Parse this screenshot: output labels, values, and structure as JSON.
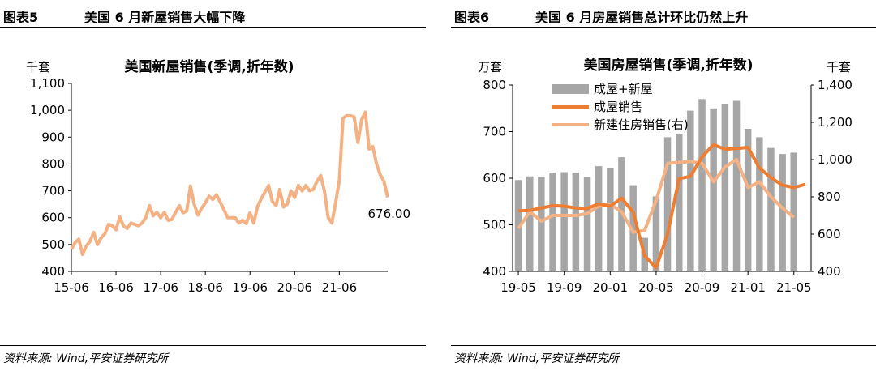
{
  "left": {
    "figure_number": "图表5",
    "figure_title": "美国 6 月新屋销售大幅下降",
    "source": "资料来源: Wind,平安证券研究所"
  },
  "right": {
    "figure_number": "图表6",
    "figure_title": "美国 6 月房屋销售总计环比仍然上升",
    "source": "资料来源: Wind,平安证券研究所"
  },
  "chart_data": [
    {
      "type": "line",
      "title": "美国新屋销售(季调,折年数)",
      "ylabel": "千套",
      "ylim": [
        400,
        1100
      ],
      "yticks": [
        400,
        500,
        600,
        700,
        800,
        900,
        1000,
        1100
      ],
      "ytick_labels": [
        "400",
        "500",
        "600",
        "700",
        "800",
        "900",
        "1,000",
        "1,100"
      ],
      "xtick_labels": [
        "15-06",
        "16-06",
        "17-06",
        "18-06",
        "19-06",
        "20-06",
        "21-06"
      ],
      "x_start": "2015-06",
      "x_end": "2021-06",
      "grid": false,
      "series": [
        {
          "color": "#f4b183",
          "values": [
            482,
            507,
            520,
            463,
            495,
            511,
            545,
            500,
            525,
            540,
            575,
            570,
            555,
            603,
            570,
            560,
            580,
            575,
            570,
            580,
            600,
            645,
            607,
            620,
            600,
            620,
            590,
            593,
            620,
            645,
            618,
            625,
            718,
            650,
            610,
            635,
            655,
            680,
            668,
            685,
            658,
            630,
            600,
            600,
            600,
            580,
            590,
            578,
            618,
            580,
            640,
            670,
            695,
            720,
            660,
            645,
            705,
            640,
            650,
            700,
            675,
            720,
            700,
            720,
            700,
            705,
            735,
            757,
            700,
            600,
            580,
            655,
            740,
            970,
            980,
            980,
            975,
            880,
            965,
            993,
            855,
            865,
            800,
            760,
            735,
            676
          ]
        }
      ],
      "annotation": "676.00"
    },
    {
      "type": "bar+line",
      "title": "美国房屋销售(季调,折年数)",
      "ylabel_left": "万套",
      "ylabel_right": "千套",
      "ylim_left": [
        400,
        800
      ],
      "ylim_right": [
        400,
        1400
      ],
      "yticks_left": [
        "400",
        "500",
        "600",
        "700",
        "800"
      ],
      "yticks_right": [
        "400",
        "600",
        "800",
        "1,000",
        "1,200",
        "1,400"
      ],
      "categories": [
        "19-05",
        "19-06",
        "19-07",
        "19-08",
        "19-09",
        "19-10",
        "19-11",
        "19-12",
        "20-01",
        "20-02",
        "20-03",
        "20-04",
        "20-05",
        "20-06",
        "20-07",
        "20-08",
        "20-09",
        "20-10",
        "20-11",
        "20-12",
        "21-01",
        "21-02",
        "21-03",
        "21-04",
        "21-05",
        "21-06"
      ],
      "xtick_labels": [
        "19-05",
        "19-09",
        "20-01",
        "20-05",
        "20-09",
        "21-01",
        "21-05"
      ],
      "legend_position": "top-left",
      "grid": false,
      "series": [
        {
          "name": "成屋+新屋",
          "kind": "bar",
          "axis": "left",
          "color": "#a6a6a6",
          "values": [
            596,
            604,
            603,
            612,
            613,
            612,
            602,
            626,
            621,
            645,
            585,
            472,
            561,
            688,
            695,
            745,
            770,
            750,
            760,
            766,
            706,
            688,
            665,
            652,
            655,
            null
          ]
        },
        {
          "name": "成屋销售",
          "kind": "line",
          "axis": "left",
          "color": "#ed7d31",
          "values": [
            530,
            531,
            536,
            541,
            540,
            536,
            535,
            545,
            540,
            557,
            527,
            433,
            408,
            480,
            599,
            604,
            646,
            672,
            662,
            664,
            666,
            622,
            601,
            585,
            580,
            587
          ]
        },
        {
          "name": "新建住房销售(右)",
          "kind": "line",
          "axis": "right",
          "color": "#f4b183",
          "values": [
            630,
            720,
            670,
            700,
            700,
            700,
            710,
            750,
            760,
            720,
            610,
            620,
            780,
            980,
            985,
            990,
            980,
            880,
            960,
            1000,
            850,
            880,
            800,
            740,
            690,
            null
          ]
        }
      ]
    }
  ]
}
